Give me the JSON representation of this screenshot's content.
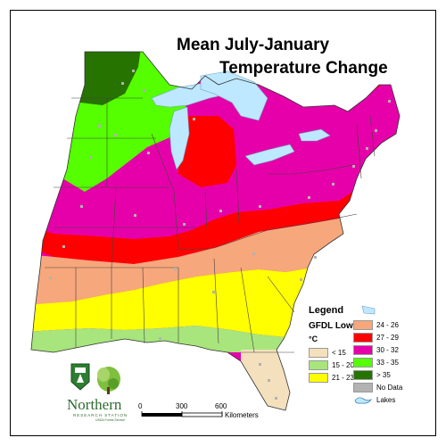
{
  "title": {
    "line1": "Mean July-January",
    "line2": "Temperature Change"
  },
  "legend": {
    "heading": "Legend",
    "model": "GFDL Low",
    "unit": "°C",
    "items": [
      {
        "label": "< 15",
        "color": "#f5e0bd"
      },
      {
        "label": "15 - 20",
        "color": "#a8e57c"
      },
      {
        "label": "21 - 23",
        "color": "#ffff00"
      },
      {
        "label": "24 - 26",
        "color": "#f7a77c"
      },
      {
        "label": "27 - 29",
        "color": "#ff0000"
      },
      {
        "label": "30 - 32",
        "color": "#e600a9"
      },
      {
        "label": "33 - 35",
        "color": "#55ff00"
      },
      {
        "label": "> 35",
        "color": "#267300"
      },
      {
        "label": "No Data",
        "color": "#b2b2b2"
      },
      {
        "label": "Lakes",
        "color": "#bee8ff"
      }
    ]
  },
  "scale_bar": {
    "ticks": [
      "0",
      "300",
      "600"
    ],
    "unit": "Kilometers"
  },
  "logo": {
    "name": "Northern",
    "subtitle": "RESEARCH STATION",
    "agency": "USDA Forest Service",
    "shield_text": "U S"
  }
}
